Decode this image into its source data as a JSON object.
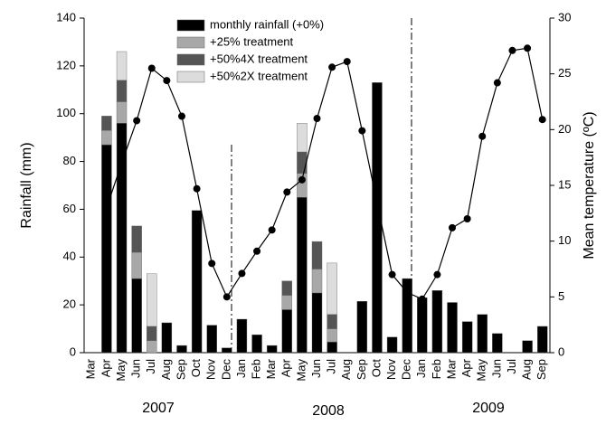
{
  "chart_data": {
    "type": "bar",
    "stacked": true,
    "y_label": "Rainfall (mm)",
    "y2_label": "Mean temperature (ºC)",
    "categories": [
      "Mar",
      "Apr",
      "May",
      "Jun",
      "Jul",
      "Aug",
      "Sep",
      "Oct",
      "Nov",
      "Dec",
      "Jan",
      "Feb",
      "Mar",
      "Apr",
      "May",
      "Jun",
      "Jul",
      "Aug",
      "Sep",
      "Oct",
      "Nov",
      "Dec",
      "Jan",
      "Feb",
      "Mar",
      "Apr",
      "May",
      "Jun",
      "Jul",
      "Aug",
      "Sep"
    ],
    "x_group_labels": [
      "2007",
      "2008",
      "2009"
    ],
    "series": [
      {
        "name": "monthly rainfall (+0%)",
        "color": "#000000",
        "values": [
          null,
          87,
          96,
          31,
          0,
          12.5,
          3,
          59.5,
          11.5,
          2,
          14,
          7.5,
          3,
          18,
          65,
          25,
          4.5,
          null,
          21.5,
          113,
          6.5,
          31,
          23,
          26,
          21,
          13,
          16,
          8,
          null,
          5,
          11
        ]
      },
      {
        "name": "+25% treatment",
        "color": "#a8a8a8",
        "values": [
          null,
          6,
          9,
          11,
          5,
          null,
          null,
          null,
          null,
          null,
          null,
          null,
          null,
          6,
          10,
          10,
          5.5,
          null,
          null,
          null,
          null,
          null,
          null,
          null,
          null,
          null,
          null,
          null,
          null,
          null,
          null
        ]
      },
      {
        "name": "+50%4X treatment",
        "color": "#555555",
        "values": [
          null,
          6,
          9,
          11,
          6,
          null,
          null,
          null,
          null,
          null,
          null,
          null,
          null,
          6,
          9,
          11.5,
          6,
          null,
          null,
          null,
          null,
          null,
          null,
          null,
          null,
          null,
          null,
          null,
          null,
          null,
          null
        ]
      },
      {
        "name": "+50%2X treatment",
        "color": "#dcdcdc",
        "values": [
          null,
          null,
          12,
          null,
          22,
          null,
          null,
          null,
          null,
          null,
          null,
          null,
          null,
          null,
          12,
          null,
          21.5,
          null,
          null,
          null,
          null,
          null,
          null,
          null,
          null,
          null,
          null,
          null,
          null,
          null,
          null
        ]
      }
    ],
    "temperature": {
      "axis": "y2",
      "color": "#000000",
      "values": [
        null,
        13,
        17,
        20.8,
        25.5,
        24.4,
        21.2,
        14.7,
        8,
        5,
        7.1,
        9.1,
        11,
        14.4,
        15.5,
        21,
        25.6,
        26.1,
        19.9,
        13.4,
        7,
        5.4,
        4.8,
        7,
        11.2,
        12,
        19.4,
        24.2,
        27.1,
        27.3,
        20.9
      ]
    },
    "ylim": [
      0,
      140
    ],
    "yticks": [
      0,
      20,
      40,
      60,
      80,
      100,
      120,
      140
    ],
    "y2lim": [
      0,
      30
    ],
    "y2ticks": [
      0,
      5,
      10,
      15,
      20,
      25,
      30
    ],
    "grid": false,
    "legend": "top-center"
  }
}
